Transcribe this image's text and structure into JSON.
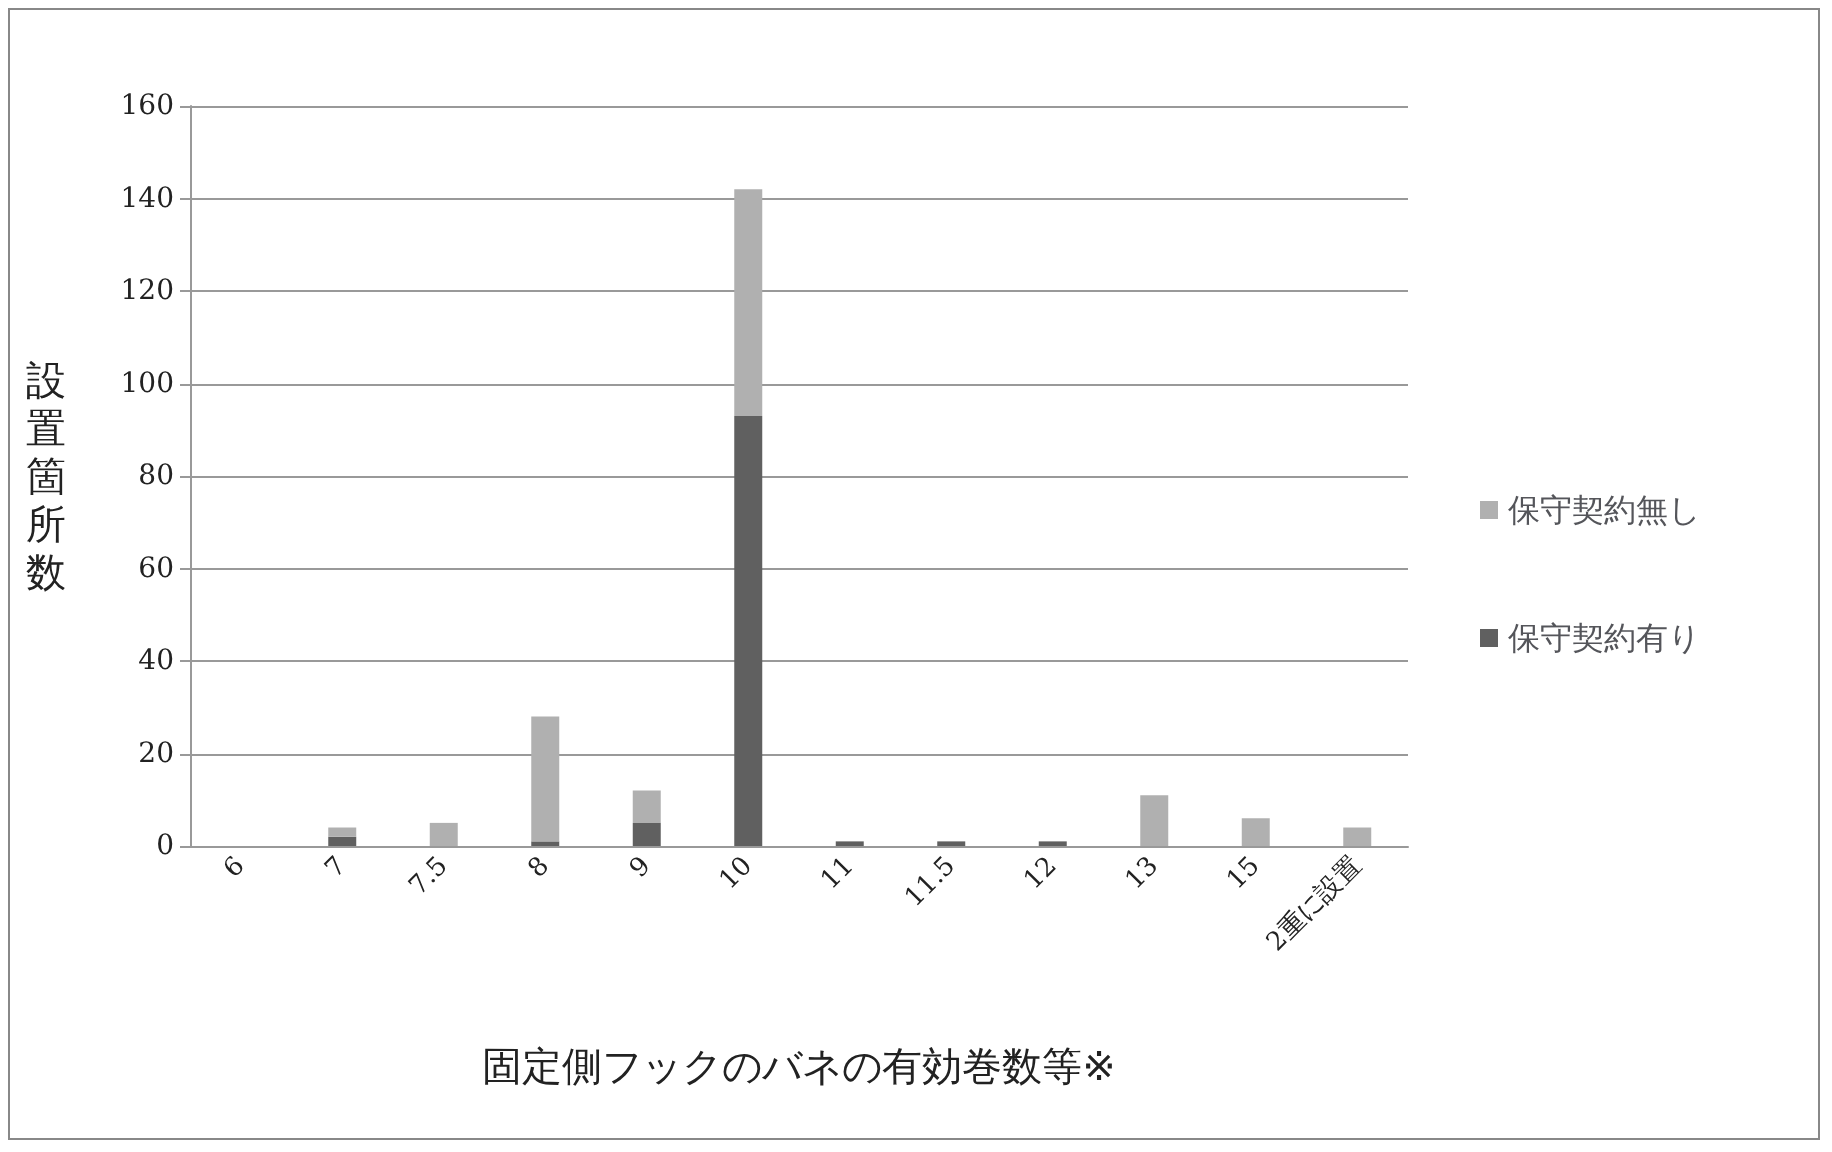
{
  "chart_data": {
    "type": "bar",
    "stacked": true,
    "xlabel": "固定側フックのバネの有効巻数等※",
    "ylabel": "設置箇所数",
    "categories": [
      "6",
      "7",
      "7.5",
      "8",
      "9",
      "10",
      "11",
      "11.5",
      "12",
      "13",
      "15",
      "2重に設置"
    ],
    "series": [
      {
        "name": "保守契約有り",
        "color": "#606060",
        "values": [
          0,
          2,
          0,
          1,
          5,
          93,
          1,
          1,
          1,
          0,
          0,
          0
        ]
      },
      {
        "name": "保守契約無し",
        "color": "#b0b0b0",
        "values": [
          0,
          2,
          5,
          27,
          7,
          49,
          0,
          0,
          0,
          11,
          6,
          4
        ]
      }
    ],
    "ylim": [
      0,
      160
    ],
    "yticks": [
      0,
      20,
      40,
      60,
      80,
      100,
      120,
      140,
      160
    ],
    "grid": "y",
    "legend": "right"
  }
}
